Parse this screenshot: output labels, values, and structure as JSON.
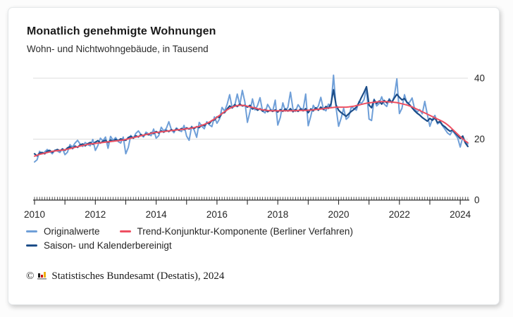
{
  "card": {
    "title": "Monatlich genehmigte Wohnungen",
    "subtitle": "Wohn- und Nichtwohngebäude, in Tausend"
  },
  "chart_data": {
    "type": "line",
    "title": "Monatlich genehmigte Wohnungen",
    "subtitle": "Wohn- und Nichtwohngebäude, in Tausend",
    "unit": "Tausend",
    "x_start": "2010-01",
    "x_end": "2024-04",
    "months_per_point": 1,
    "x_tick_labels": [
      "2010",
      "2012",
      "2014",
      "2016",
      "2018",
      "2020",
      "2022",
      "2024"
    ],
    "y_ticks": [
      0,
      20,
      40
    ],
    "grid_values": [
      20,
      40
    ],
    "ylim": [
      0,
      44
    ],
    "grid": "horizontal-only",
    "legend_position": "bottom-left",
    "axis_color": "#2a2a2a",
    "grid_color": "#dcdcdc",
    "label_color": "#262626",
    "series": [
      {
        "name": "Originalwerte",
        "color": "#6f9fd8",
        "width": 2,
        "values": [
          12.5,
          13.2,
          16.0,
          15.2,
          15.8,
          16.6,
          16.0,
          15.2,
          16.4,
          16.1,
          15.6,
          16.9,
          14.9,
          15.7,
          18.2,
          17.4,
          18.7,
          19.6,
          18.4,
          17.6,
          18.9,
          18.2,
          17.8,
          19.9,
          16.3,
          17.9,
          20.3,
          19.4,
          20.7,
          17.0,
          20.9,
          19.6,
          20.5,
          19.2,
          18.7,
          20.7,
          15.2,
          17.3,
          21.2,
          20.3,
          21.9,
          22.7,
          21.5,
          20.7,
          22.3,
          21.7,
          21.1,
          23.3,
          20.3,
          21.1,
          23.9,
          22.7,
          23.5,
          25.7,
          23.1,
          22.1,
          23.7,
          22.9,
          22.5,
          24.5,
          21.0,
          19.6,
          24.2,
          23.0,
          20.6,
          25.5,
          24.2,
          23.4,
          25.7,
          24.7,
          24.1,
          27.3,
          25.2,
          26.6,
          30.4,
          29.2,
          31.4,
          34.6,
          30.2,
          31.0,
          34.8,
          31.2,
          36.0,
          32.2,
          25.5,
          29.0,
          33.2,
          29.6,
          31.0,
          33.6,
          29.2,
          28.6,
          31.4,
          30.0,
          29.2,
          32.8,
          24.6,
          27.1,
          31.9,
          29.2,
          30.5,
          35.4,
          29.8,
          29.1,
          31.3,
          30.1,
          29.7,
          34.8,
          24.4,
          27.5,
          31.1,
          29.7,
          30.9,
          33.7,
          29.9,
          29.3,
          31.5,
          30.7,
          41.0,
          30.3,
          24.2,
          26.9,
          30.1,
          26.5,
          27.3,
          30.5,
          30.1,
          29.5,
          32.3,
          31.7,
          32.9,
          36.5,
          26.6,
          26.1,
          33.1,
          30.9,
          31.7,
          33.9,
          31.5,
          30.7,
          33.3,
          31.9,
          34.1,
          39.8,
          28.4,
          30.1,
          34.6,
          31.8,
          32.1,
          33.5,
          29.9,
          28.9,
          29.7,
          28.3,
          32.4,
          28.1,
          24.2,
          26.6,
          27.8,
          25.0,
          25.6,
          24.4,
          23.2,
          22.0,
          21.4,
          22.8,
          21.6,
          20.4,
          17.4,
          20.6,
          19.0,
          18.4
        ]
      },
      {
        "name": "Saison- und Kalenderbereinigt",
        "color": "#1d4e89",
        "width": 2.2,
        "values": [
          15.2,
          14.5,
          15.4,
          15.6,
          15.2,
          16.0,
          16.3,
          15.7,
          16.2,
          16.6,
          16.2,
          16.7,
          16.3,
          17.1,
          17.5,
          16.9,
          17.7,
          17.3,
          18.1,
          18.4,
          17.8,
          18.5,
          18.9,
          18.3,
          19.0,
          19.5,
          18.7,
          19.3,
          19.6,
          18.9,
          19.7,
          19.3,
          19.9,
          19.5,
          20.1,
          19.7,
          19.6,
          20.5,
          20.9,
          20.3,
          21.1,
          20.7,
          21.5,
          21.1,
          21.7,
          21.4,
          22.1,
          21.8,
          22.5,
          22.0,
          22.7,
          22.3,
          22.9,
          22.5,
          23.1,
          22.7,
          23.3,
          22.9,
          23.5,
          23.1,
          23.7,
          23.3,
          23.9,
          23.5,
          24.1,
          23.8,
          24.6,
          24.4,
          25.3,
          25.1,
          26.1,
          26.3,
          27.3,
          27.1,
          28.5,
          28.7,
          29.9,
          30.9,
          30.3,
          31.3,
          30.7,
          31.5,
          30.9,
          31.1,
          30.5,
          31.1,
          29.9,
          30.3,
          29.5,
          30.0,
          29.2,
          29.7,
          29.0,
          29.5,
          29.1,
          29.6,
          28.9,
          29.7,
          29.1,
          29.9,
          29.2,
          30.0,
          29.0,
          29.7,
          29.1,
          29.9,
          29.3,
          30.0,
          28.7,
          29.9,
          29.3,
          30.3,
          29.5,
          30.5,
          29.7,
          30.7,
          30.1,
          31.6,
          36.2,
          31.2,
          29.5,
          28.7,
          28.1,
          27.5,
          28.3,
          29.1,
          29.7,
          30.5,
          31.9,
          33.7,
          35.3,
          37.2,
          31.2,
          30.3,
          32.9,
          31.7,
          32.5,
          31.5,
          32.7,
          31.9,
          32.9,
          32.1,
          33.5,
          34.7,
          33.7,
          32.9,
          33.3,
          32.1,
          31.3,
          30.3,
          29.3,
          28.5,
          27.9,
          27.1,
          26.5,
          25.9,
          26.8,
          26.2,
          27.0,
          25.4,
          25.8,
          24.6,
          24.0,
          23.2,
          22.6,
          23.0,
          22.0,
          21.2,
          20.2,
          21.0,
          18.8,
          17.6
        ]
      },
      {
        "name": "Trend-Konjunktur-Komponente (Berliner Verfahren)",
        "color": "#ee5062",
        "width": 2,
        "values": [
          14.4,
          14.7,
          15.0,
          15.2,
          15.4,
          15.6,
          15.8,
          16.0,
          16.1,
          16.2,
          16.3,
          16.4,
          16.5,
          16.7,
          16.9,
          17.1,
          17.3,
          17.5,
          17.7,
          17.9,
          18.1,
          18.3,
          18.4,
          18.5,
          18.6,
          18.7,
          18.8,
          18.9,
          19.0,
          19.1,
          19.2,
          19.3,
          19.4,
          19.5,
          19.6,
          19.7,
          19.9,
          20.1,
          20.3,
          20.5,
          20.7,
          20.9,
          21.1,
          21.3,
          21.5,
          21.7,
          21.9,
          22.1,
          22.2,
          22.3,
          22.4,
          22.5,
          22.6,
          22.7,
          22.8,
          22.9,
          23.0,
          23.1,
          23.2,
          23.3,
          23.4,
          23.5,
          23.6,
          23.8,
          24.0,
          24.2,
          24.5,
          24.8,
          25.2,
          25.6,
          26.1,
          26.6,
          27.2,
          27.8,
          28.4,
          29.0,
          29.6,
          30.1,
          30.5,
          30.8,
          31.0,
          31.1,
          31.1,
          31.0,
          30.8,
          30.6,
          30.4,
          30.2,
          30.0,
          29.8,
          29.6,
          29.5,
          29.4,
          29.3,
          29.3,
          29.3,
          29.3,
          29.3,
          29.3,
          29.3,
          29.3,
          29.3,
          29.3,
          29.3,
          29.4,
          29.4,
          29.4,
          29.4,
          29.5,
          29.5,
          29.6,
          29.7,
          29.8,
          29.9,
          30.0,
          30.1,
          30.2,
          30.3,
          30.4,
          30.5,
          30.5,
          30.5,
          30.5,
          30.5,
          30.6,
          30.7,
          30.8,
          31.0,
          31.2,
          31.4,
          31.6,
          31.8,
          31.9,
          32.0,
          32.1,
          32.2,
          32.3,
          32.3,
          32.3,
          32.3,
          32.2,
          32.2,
          32.1,
          32.0,
          31.8,
          31.6,
          31.4,
          31.2,
          30.9,
          30.6,
          30.2,
          29.8,
          29.4,
          29.0,
          28.6,
          28.2,
          27.8,
          27.4,
          27.0,
          26.6,
          26.2,
          25.8,
          25.3,
          24.7,
          24.0,
          23.2,
          22.4,
          21.6,
          20.8,
          20.1,
          19.4,
          18.8
        ]
      }
    ]
  },
  "legend": {
    "row1": [
      "Originalwerte",
      "Trend-Konjunktur-Komponente (Berliner Verfahren)"
    ],
    "row2": [
      "Saison- und Kalenderbereinigt"
    ]
  },
  "footer": {
    "copyright_symbol": "©",
    "icon": "destatis-bar-chart-logo",
    "text": "Statistisches Bundesamt (Destatis), 2024",
    "logo_colors": {
      "black": "#1a1a1a",
      "red": "#cc1111",
      "gold": "#eeb111",
      "base": "#8a8a8a"
    }
  }
}
